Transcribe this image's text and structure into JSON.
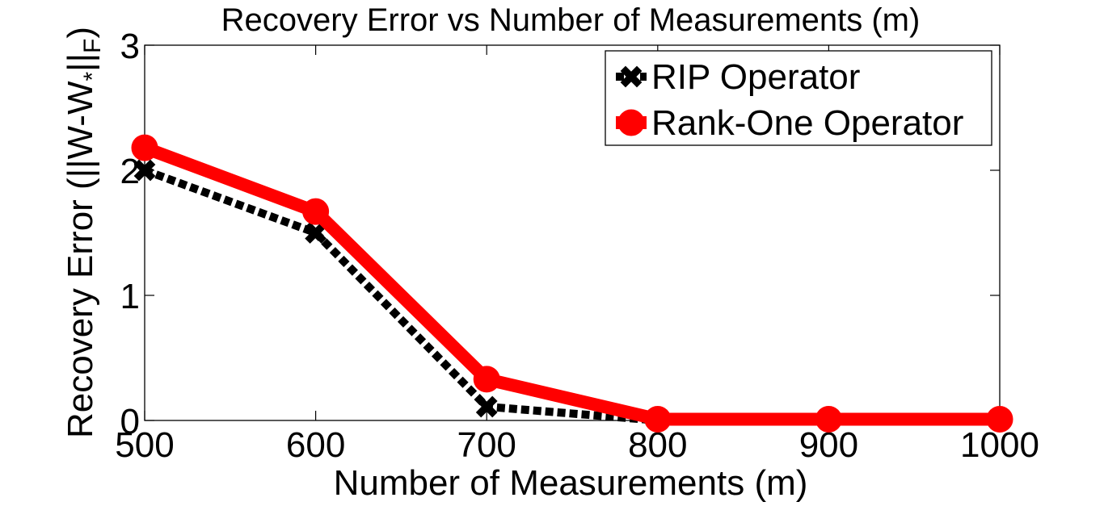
{
  "chart_data": {
    "type": "line",
    "title": "Recovery Error  vs Number of Measurements (m)",
    "xlabel": "Number of Measurements (m)",
    "ylabel": {
      "main": "Recovery Error (||W-W",
      "sub1": "*",
      "mid": "||",
      "sub2": "F",
      "end": ")"
    },
    "xlim": [
      500,
      1000
    ],
    "ylim": [
      0,
      3
    ],
    "xticks": [
      500,
      600,
      700,
      800,
      900,
      1000
    ],
    "yticks": [
      0,
      1,
      2,
      3
    ],
    "grid": false,
    "legend_position": "top-right",
    "x": [
      500,
      600,
      700,
      800,
      900,
      1000
    ],
    "series": [
      {
        "name": "RIP Operator",
        "values": [
          2.0,
          1.5,
          0.11,
          0.0,
          0.0,
          0.0
        ],
        "color": "#000000",
        "line_style": "dashed",
        "marker": "x"
      },
      {
        "name": "Rank-One Operator",
        "values": [
          2.18,
          1.67,
          0.33,
          0.01,
          0.01,
          0.01
        ],
        "color": "#ff0000",
        "line_style": "solid",
        "marker": "circle"
      }
    ]
  }
}
